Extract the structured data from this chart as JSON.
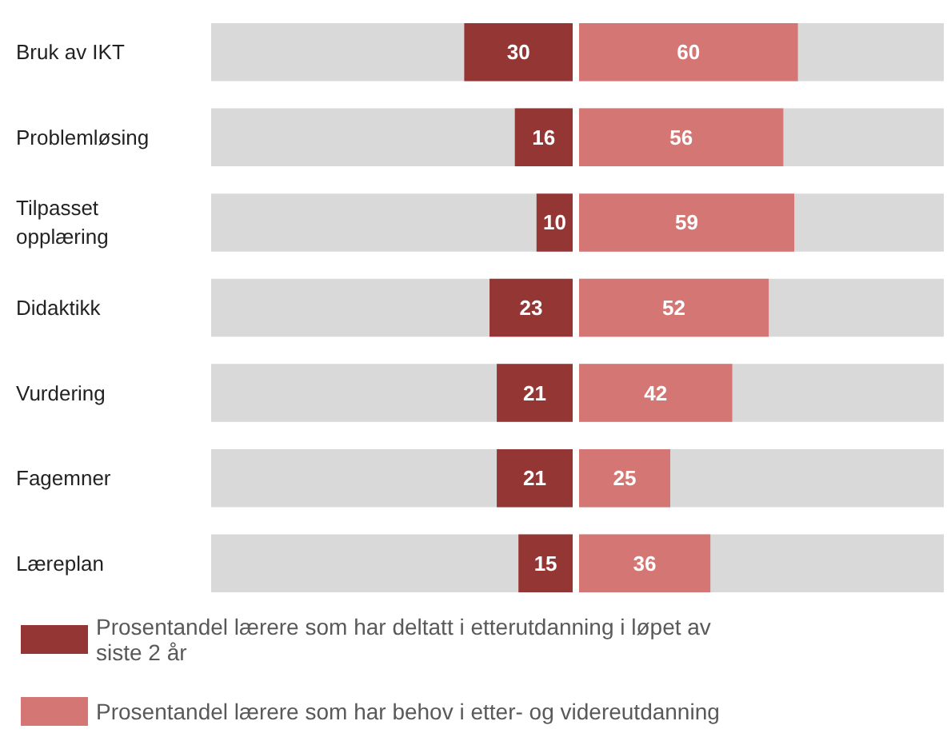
{
  "chart_data": [
    {
      "type": "bar",
      "orientation": "horizontal",
      "legend": "bottom",
      "data_labels": true,
      "tick_labels": "y",
      "xlim": [
        100,
        0
      ],
      "categories": [
        "Bruk av IKT",
        "Problemløsing",
        "Tilpasset opplæring",
        "Didaktikk",
        "Vurdering",
        "Fagemner",
        "Læreplan"
      ],
      "series": [
        {
          "name": "Prosentandel lærere som har deltatt i etterutdanning i løpet av siste 2 år",
          "color": "#943634",
          "values": [
            30,
            16,
            10,
            23,
            21,
            21,
            15
          ]
        }
      ]
    },
    {
      "type": "bar",
      "orientation": "horizontal",
      "legend": "bottom",
      "data_labels": true,
      "tick_labels": false,
      "xlim": [
        0,
        100
      ],
      "categories": [
        "Bruk av IKT",
        "Problemløsing",
        "Tilpasset opplæring",
        "Didaktikk",
        "Vurdering",
        "Fagemner",
        "Læreplan"
      ],
      "series": [
        {
          "name": "Prosentandel lærere som har behov i etter- og videreutdanning",
          "color": "#d47673",
          "values": [
            60,
            56,
            59,
            52,
            42,
            25,
            36
          ]
        }
      ]
    }
  ]
}
